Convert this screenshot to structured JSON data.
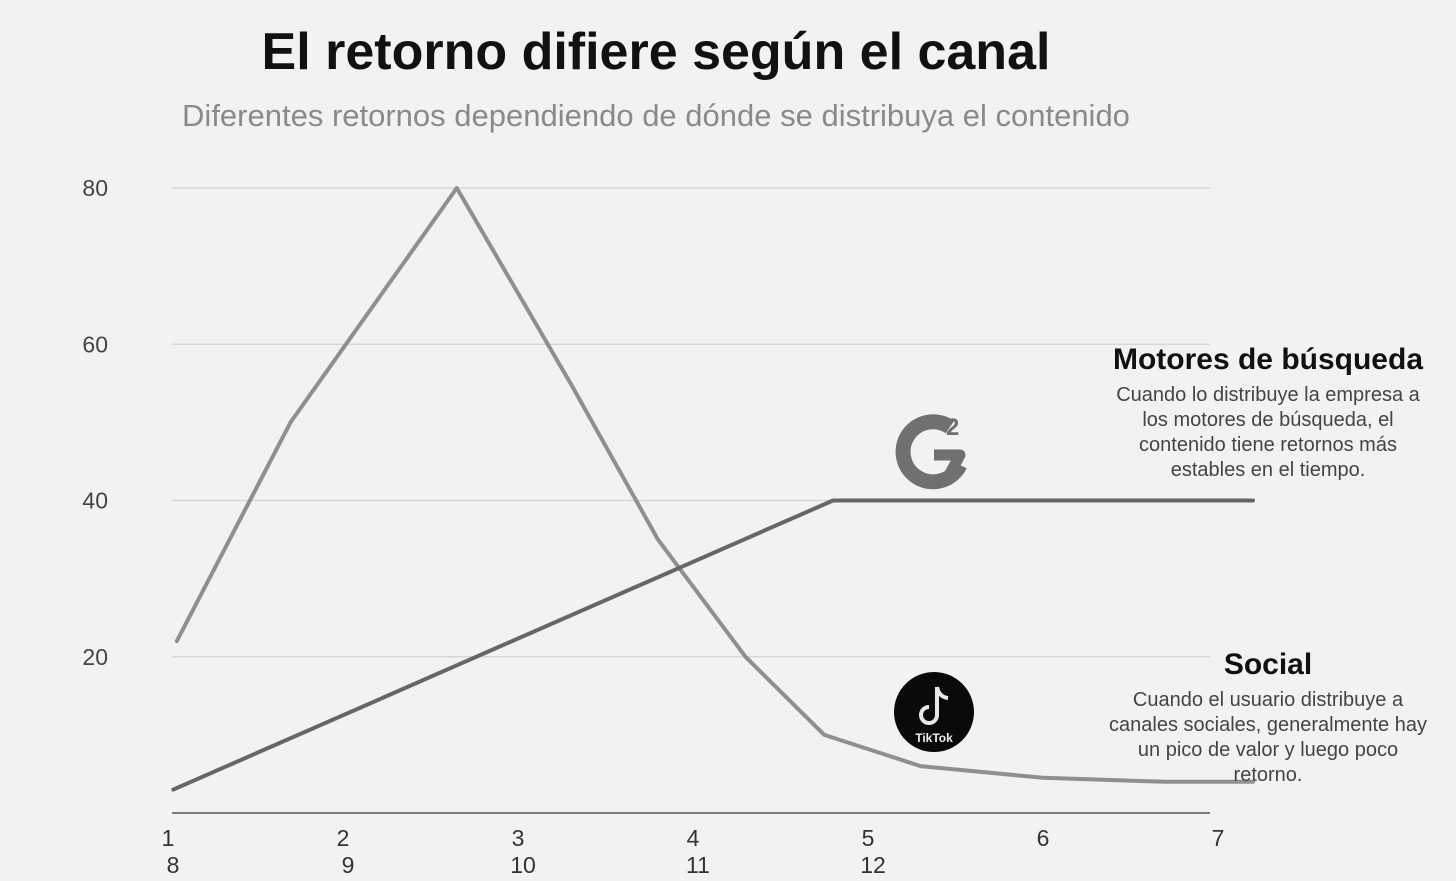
{
  "chart_data": {
    "type": "line",
    "title": "El retorno difiere según el canal",
    "subtitle": "Diferentes retornos dependiendo de dónde se distribuya el contenido",
    "xlabel": "",
    "ylabel": "",
    "ylim": [
      0,
      80
    ],
    "yticks": [
      20,
      40,
      60,
      80
    ],
    "xlim": [
      1,
      7.3
    ],
    "xticks": [
      {
        "x": 1,
        "label": "1"
      },
      {
        "x": 2,
        "label": "2"
      },
      {
        "x": 3,
        "label": "3"
      },
      {
        "x": 4,
        "label": "4"
      },
      {
        "x": 5,
        "label": "5"
      },
      {
        "x": 6,
        "label": "6"
      },
      {
        "x": 7,
        "label": "7"
      }
    ],
    "xticks_second_row": [
      {
        "x": 1,
        "label": "8"
      },
      {
        "x": 2,
        "label": "9"
      },
      {
        "x": 3,
        "label": "10"
      },
      {
        "x": 4,
        "label": "11"
      },
      {
        "x": 5,
        "label": "12"
      }
    ],
    "grid": true,
    "series": [
      {
        "color": "#8f8f8f",
        "points": [
          [
            1.05,
            22
          ],
          [
            1.7,
            50
          ],
          [
            2.65,
            80
          ],
          [
            3.3,
            55
          ],
          [
            3.8,
            35
          ],
          [
            4.3,
            20
          ],
          [
            4.75,
            10
          ],
          [
            5.3,
            6
          ],
          [
            6.0,
            4.5
          ],
          [
            6.7,
            4
          ],
          [
            7.2,
            4
          ]
        ]
      },
      {
        "color": "#666666",
        "points": [
          [
            1.03,
            3
          ],
          [
            4.8,
            40
          ],
          [
            7.2,
            40
          ]
        ]
      }
    ],
    "annotations": [
      {
        "title": "Motores de búsqueda",
        "lines": [
          "Cuando lo distribuye la empresa a",
          "los motores de búsqueda, el",
          "contenido tiene retornos más",
          "estables en el tiempo."
        ]
      },
      {
        "title": "Social",
        "lines": [
          "Cuando el usuario distribuye a",
          "canales sociales, generalmente hay",
          "un pico de valor y luego poco",
          "retorno."
        ]
      }
    ],
    "logos": {
      "search": {
        "name": "g2-logo-icon",
        "superscript": "2"
      },
      "social": {
        "name": "tiktok-logo-icon",
        "label": "TikTok"
      }
    }
  }
}
